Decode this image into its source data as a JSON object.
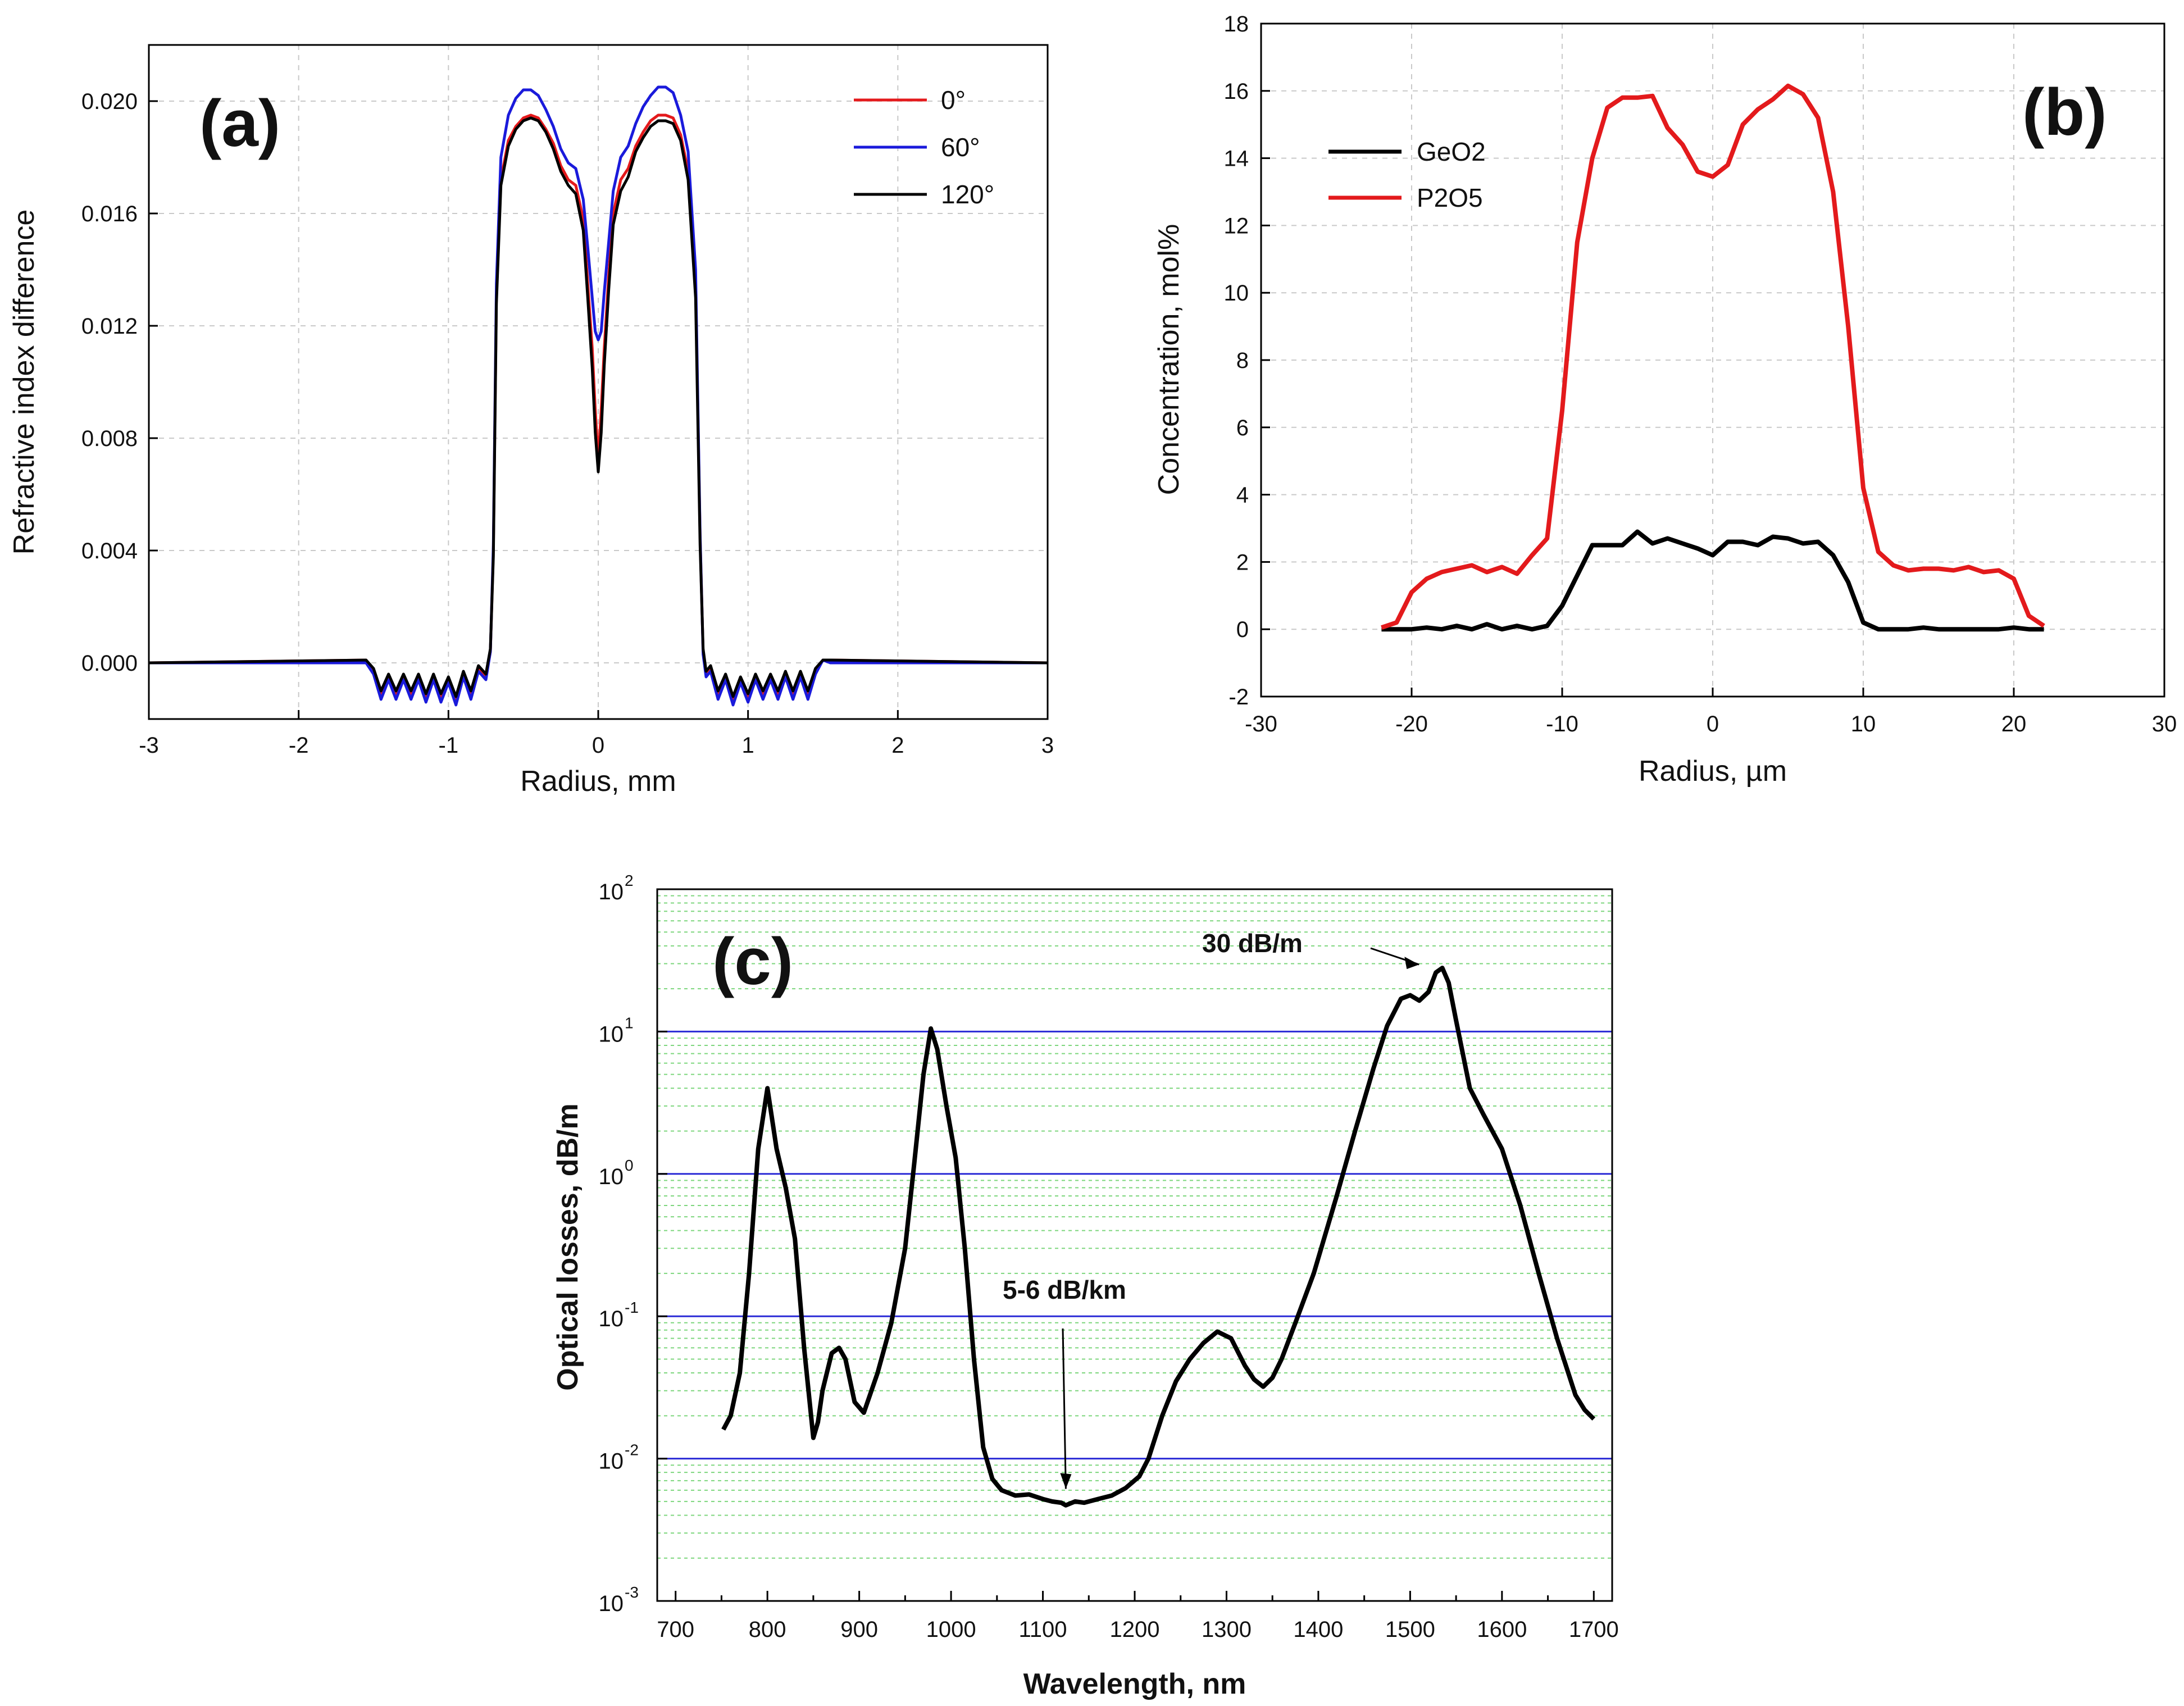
{
  "chart_data": [
    {
      "id": "a",
      "type": "line",
      "panel_label": "(a)",
      "title": "",
      "xlabel": "Radius, mm",
      "ylabel": "Refractive index difference",
      "xlim": [
        -3,
        3
      ],
      "ylim": [
        -0.002,
        0.022
      ],
      "xticks": [
        -3,
        -2,
        -1,
        0,
        1,
        2,
        3
      ],
      "yticks": [
        0.0,
        0.004,
        0.008,
        0.012,
        0.016,
        0.02
      ],
      "ytick_labels": [
        "0.000",
        "0.004",
        "0.008",
        "0.012",
        "0.016",
        "0.020"
      ],
      "grid": true,
      "legend": "top-right",
      "series": [
        {
          "name": "0°",
          "color": "#e41a1c",
          "x": [
            -3,
            -1.55,
            -1.5,
            -1.45,
            -1.4,
            -1.35,
            -1.3,
            -1.25,
            -1.2,
            -1.15,
            -1.1,
            -1.05,
            -1.0,
            -0.95,
            -0.9,
            -0.85,
            -0.8,
            -0.75,
            -0.72,
            -0.7,
            -0.68,
            -0.65,
            -0.6,
            -0.55,
            -0.5,
            -0.45,
            -0.4,
            -0.35,
            -0.3,
            -0.25,
            -0.2,
            -0.15,
            -0.1,
            -0.07,
            -0.04,
            -0.02,
            0.0,
            0.02,
            0.04,
            0.07,
            0.1,
            0.15,
            0.2,
            0.25,
            0.3,
            0.35,
            0.4,
            0.45,
            0.5,
            0.55,
            0.6,
            0.65,
            0.68,
            0.7,
            0.72,
            0.75,
            0.8,
            0.85,
            0.9,
            0.95,
            1.0,
            1.05,
            1.1,
            1.15,
            1.2,
            1.25,
            1.3,
            1.35,
            1.4,
            1.45,
            1.5,
            1.55,
            3
          ],
          "y": [
            0.0,
            0.0001,
            -0.0003,
            -0.0012,
            -0.0005,
            -0.0011,
            -0.0005,
            -0.0011,
            -0.0005,
            -0.0012,
            -0.0005,
            -0.0012,
            -0.0006,
            -0.0013,
            -0.0004,
            -0.0011,
            -0.0002,
            -0.0005,
            0.0004,
            0.004,
            0.013,
            0.0172,
            0.0186,
            0.0191,
            0.0194,
            0.0195,
            0.0194,
            0.019,
            0.0185,
            0.0177,
            0.0172,
            0.017,
            0.0158,
            0.0135,
            0.0112,
            0.009,
            0.0072,
            0.009,
            0.0112,
            0.0138,
            0.016,
            0.0172,
            0.0176,
            0.0184,
            0.0189,
            0.0193,
            0.0195,
            0.0195,
            0.0194,
            0.0188,
            0.0175,
            0.0135,
            0.0045,
            0.0004,
            -0.0004,
            -0.0002,
            -0.0011,
            -0.0005,
            -0.0013,
            -0.0006,
            -0.0012,
            -0.0005,
            -0.0011,
            -0.0005,
            -0.0011,
            -0.0004,
            -0.0011,
            -0.0004,
            -0.0011,
            -0.0003,
            0.0001,
            0.0001,
            0.0
          ]
        },
        {
          "name": "60°",
          "color": "#1a1adb",
          "x": [
            -3,
            -1.55,
            -1.5,
            -1.45,
            -1.4,
            -1.35,
            -1.3,
            -1.25,
            -1.2,
            -1.15,
            -1.1,
            -1.05,
            -1.0,
            -0.95,
            -0.9,
            -0.85,
            -0.8,
            -0.75,
            -0.72,
            -0.7,
            -0.68,
            -0.65,
            -0.6,
            -0.55,
            -0.5,
            -0.45,
            -0.4,
            -0.35,
            -0.3,
            -0.25,
            -0.2,
            -0.15,
            -0.1,
            -0.07,
            -0.04,
            -0.02,
            0.0,
            0.02,
            0.04,
            0.07,
            0.1,
            0.15,
            0.2,
            0.25,
            0.3,
            0.35,
            0.4,
            0.45,
            0.5,
            0.55,
            0.6,
            0.65,
            0.68,
            0.7,
            0.72,
            0.75,
            0.8,
            0.85,
            0.9,
            0.95,
            1.0,
            1.05,
            1.1,
            1.15,
            1.2,
            1.25,
            1.3,
            1.35,
            1.4,
            1.45,
            1.5,
            1.55,
            3
          ],
          "y": [
            0.0,
            0.0,
            -0.0004,
            -0.0013,
            -0.0006,
            -0.0013,
            -0.0006,
            -0.0013,
            -0.0006,
            -0.0014,
            -0.0006,
            -0.0014,
            -0.0007,
            -0.0015,
            -0.0005,
            -0.0013,
            -0.0003,
            -0.0006,
            0.0004,
            0.0042,
            0.0135,
            0.018,
            0.0195,
            0.0201,
            0.0204,
            0.0204,
            0.0202,
            0.0197,
            0.0191,
            0.0183,
            0.0178,
            0.0176,
            0.0165,
            0.0148,
            0.013,
            0.0118,
            0.0115,
            0.0118,
            0.0132,
            0.015,
            0.0168,
            0.018,
            0.0184,
            0.0192,
            0.0198,
            0.0202,
            0.0205,
            0.0205,
            0.0203,
            0.0195,
            0.0182,
            0.014,
            0.0046,
            0.0003,
            -0.0005,
            -0.0003,
            -0.0013,
            -0.0006,
            -0.0015,
            -0.0007,
            -0.0014,
            -0.0006,
            -0.0013,
            -0.0006,
            -0.0013,
            -0.0005,
            -0.0013,
            -0.0005,
            -0.0013,
            -0.0004,
            0.0001,
            0.0,
            0.0
          ]
        },
        {
          "name": "120°",
          "color": "#000000",
          "x": [
            -3,
            -1.55,
            -1.5,
            -1.45,
            -1.4,
            -1.35,
            -1.3,
            -1.25,
            -1.2,
            -1.15,
            -1.1,
            -1.05,
            -1.0,
            -0.95,
            -0.9,
            -0.85,
            -0.8,
            -0.75,
            -0.72,
            -0.7,
            -0.68,
            -0.65,
            -0.6,
            -0.55,
            -0.5,
            -0.45,
            -0.4,
            -0.35,
            -0.3,
            -0.25,
            -0.2,
            -0.15,
            -0.1,
            -0.07,
            -0.04,
            -0.02,
            0.0,
            0.02,
            0.04,
            0.07,
            0.1,
            0.15,
            0.2,
            0.25,
            0.3,
            0.35,
            0.4,
            0.45,
            0.5,
            0.55,
            0.6,
            0.65,
            0.68,
            0.7,
            0.72,
            0.75,
            0.8,
            0.85,
            0.9,
            0.95,
            1.0,
            1.05,
            1.1,
            1.15,
            1.2,
            1.25,
            1.3,
            1.35,
            1.4,
            1.45,
            1.5,
            1.55,
            3
          ],
          "y": [
            0.0,
            0.0001,
            -0.0002,
            -0.001,
            -0.0004,
            -0.001,
            -0.0004,
            -0.001,
            -0.0004,
            -0.0011,
            -0.0004,
            -0.0011,
            -0.0005,
            -0.0012,
            -0.0003,
            -0.001,
            -0.0001,
            -0.0004,
            0.0005,
            0.0038,
            0.0128,
            0.017,
            0.0184,
            0.019,
            0.0193,
            0.0194,
            0.0193,
            0.0189,
            0.0183,
            0.0175,
            0.017,
            0.0167,
            0.0154,
            0.013,
            0.0105,
            0.0082,
            0.0068,
            0.0082,
            0.0106,
            0.0133,
            0.0156,
            0.0168,
            0.0173,
            0.0182,
            0.0187,
            0.0191,
            0.0193,
            0.0193,
            0.0192,
            0.0186,
            0.0172,
            0.013,
            0.0042,
            0.0005,
            -0.0003,
            -0.0001,
            -0.001,
            -0.0004,
            -0.0012,
            -0.0005,
            -0.0011,
            -0.0004,
            -0.001,
            -0.0004,
            -0.001,
            -0.0003,
            -0.001,
            -0.0003,
            -0.001,
            -0.0002,
            0.0001,
            0.0001,
            0.0
          ]
        }
      ]
    },
    {
      "id": "b",
      "type": "line",
      "panel_label": "(b)",
      "title": "",
      "xlabel": "Radius, µm",
      "ylabel": "Concentration, mol%",
      "xlim": [
        -30,
        30
      ],
      "ylim": [
        -2,
        18
      ],
      "xticks": [
        -30,
        -20,
        -10,
        0,
        10,
        20,
        30
      ],
      "yticks": [
        -2,
        0,
        2,
        4,
        6,
        8,
        10,
        12,
        14,
        16,
        18
      ],
      "grid": true,
      "legend": "top-left",
      "series": [
        {
          "name": "GeO2",
          "color": "#000000",
          "x": [
            -22,
            -21,
            -20,
            -19,
            -18,
            -17,
            -16,
            -15,
            -14,
            -13,
            -12,
            -11,
            -10,
            -9,
            -8,
            -7,
            -6,
            -5,
            -4,
            -3,
            -2,
            -1,
            0,
            1,
            2,
            3,
            4,
            5,
            6,
            7,
            8,
            9,
            10,
            11,
            12,
            13,
            14,
            15,
            16,
            17,
            18,
            19,
            20,
            21,
            22
          ],
          "y": [
            0.0,
            0.0,
            0.0,
            0.05,
            0.0,
            0.1,
            0.0,
            0.15,
            0.0,
            0.1,
            0.0,
            0.1,
            0.7,
            1.6,
            2.5,
            2.5,
            2.5,
            2.9,
            2.55,
            2.7,
            2.55,
            2.4,
            2.2,
            2.6,
            2.6,
            2.5,
            2.75,
            2.7,
            2.55,
            2.6,
            2.2,
            1.4,
            0.2,
            0.0,
            0.0,
            0.0,
            0.05,
            0.0,
            0.0,
            0.0,
            0.0,
            0.0,
            0.05,
            0.0,
            0.0
          ]
        },
        {
          "name": "P2O5",
          "color": "#e31a1c",
          "x": [
            -22,
            -21,
            -20,
            -19,
            -18,
            -17,
            -16,
            -15,
            -14,
            -13,
            -12,
            -11,
            -10,
            -9,
            -8,
            -7,
            -6,
            -5,
            -4,
            -3,
            -2,
            -1,
            0,
            1,
            2,
            3,
            4,
            5,
            6,
            7,
            8,
            9,
            10,
            11,
            12,
            13,
            14,
            15,
            16,
            17,
            18,
            19,
            20,
            21,
            22
          ],
          "y": [
            0.05,
            0.2,
            1.1,
            1.5,
            1.7,
            1.8,
            1.9,
            1.7,
            1.85,
            1.65,
            2.2,
            2.7,
            6.5,
            11.5,
            14.0,
            15.5,
            15.8,
            15.8,
            15.85,
            14.9,
            14.4,
            13.6,
            13.45,
            13.8,
            15.0,
            15.45,
            15.75,
            16.15,
            15.9,
            15.2,
            13.0,
            9.0,
            4.2,
            2.3,
            1.9,
            1.75,
            1.8,
            1.8,
            1.75,
            1.85,
            1.7,
            1.75,
            1.5,
            0.4,
            0.1
          ]
        }
      ]
    },
    {
      "id": "c",
      "type": "line",
      "panel_label": "(c)",
      "title": "",
      "xlabel": "Wavelength, nm",
      "ylabel": "Optical losses, dB/m",
      "xlim": [
        680,
        1720
      ],
      "ylim": [
        0.001,
        100
      ],
      "yscale": "log",
      "xticks": [
        700,
        800,
        900,
        1000,
        1100,
        1200,
        1300,
        1400,
        1500,
        1600,
        1700
      ],
      "ytick_bases": [
        "10",
        "10",
        "10",
        "10",
        "10",
        "10"
      ],
      "ytick_exponents": [
        "-3",
        "-2",
        "-1",
        "0",
        "1",
        "2"
      ],
      "annotations": [
        {
          "text": "30 dB/m",
          "x": 1533,
          "y": 28
        },
        {
          "text": "5-6 dB/km",
          "x": 1125,
          "y": 0.0054
        }
      ],
      "series": [
        {
          "name": "losses",
          "color": "#000000",
          "x": [
            752,
            760,
            770,
            780,
            790,
            800,
            810,
            820,
            830,
            840,
            850,
            855,
            860,
            870,
            878,
            885,
            895,
            905,
            920,
            935,
            950,
            960,
            970,
            978,
            985,
            995,
            1005,
            1015,
            1025,
            1035,
            1045,
            1055,
            1070,
            1085,
            1100,
            1110,
            1120,
            1125,
            1135,
            1145,
            1160,
            1175,
            1190,
            1205,
            1215,
            1230,
            1245,
            1260,
            1275,
            1290,
            1305,
            1320,
            1330,
            1340,
            1350,
            1360,
            1375,
            1395,
            1420,
            1440,
            1460,
            1475,
            1490,
            1500,
            1510,
            1520,
            1528,
            1535,
            1542,
            1550,
            1565,
            1580,
            1600,
            1620,
            1640,
            1660,
            1680,
            1690,
            1700
          ],
          "y": [
            0.016,
            0.02,
            0.04,
            0.2,
            1.5,
            4.0,
            1.5,
            0.8,
            0.35,
            0.06,
            0.014,
            0.018,
            0.03,
            0.055,
            0.06,
            0.05,
            0.025,
            0.021,
            0.04,
            0.09,
            0.3,
            1.2,
            5.0,
            10.5,
            7.5,
            3.0,
            1.3,
            0.3,
            0.05,
            0.012,
            0.0072,
            0.006,
            0.0055,
            0.0056,
            0.0052,
            0.005,
            0.0049,
            0.0047,
            0.005,
            0.0049,
            0.0052,
            0.0055,
            0.0062,
            0.0075,
            0.01,
            0.02,
            0.035,
            0.05,
            0.065,
            0.078,
            0.07,
            0.045,
            0.036,
            0.032,
            0.037,
            0.05,
            0.09,
            0.2,
            0.7,
            2.0,
            5.5,
            11.0,
            17.0,
            18.0,
            16.5,
            19.0,
            26.0,
            28.0,
            22.0,
            12.0,
            4.0,
            2.6,
            1.5,
            0.6,
            0.2,
            0.07,
            0.028,
            0.022,
            0.019
          ]
        }
      ]
    }
  ]
}
